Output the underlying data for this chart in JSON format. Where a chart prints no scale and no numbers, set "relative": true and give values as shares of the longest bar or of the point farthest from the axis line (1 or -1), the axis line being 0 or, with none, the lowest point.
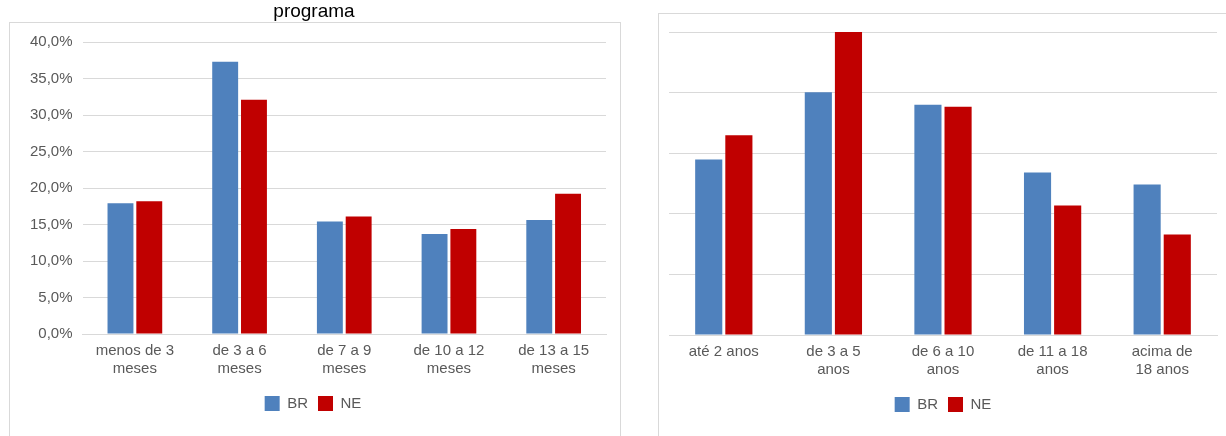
{
  "chart_data": [
    {
      "type": "bar",
      "title": "programa",
      "categories": [
        "menos de 3 meses",
        "de 3 a 6 meses",
        "de 7 a 9 meses",
        "de 10 a 12 meses",
        "de 13 a 15 meses"
      ],
      "series": [
        {
          "name": "BR",
          "color": "#4f81bd",
          "values": [
            17.9,
            37.3,
            15.4,
            13.7,
            15.6
          ]
        },
        {
          "name": "NE",
          "color": "#c00000",
          "values": [
            18.2,
            32.1,
            16.1,
            14.4,
            19.2
          ]
        }
      ],
      "ylim": [
        0,
        40
      ],
      "yticks": [
        {
          "value": 0,
          "label": "0,0%"
        },
        {
          "value": 5,
          "label": "5,0%"
        },
        {
          "value": 10,
          "label": "10,0%"
        },
        {
          "value": 15,
          "label": "15,0%"
        },
        {
          "value": 20,
          "label": "20,0%"
        },
        {
          "value": 25,
          "label": "25,0%"
        },
        {
          "value": 30,
          "label": "30,0%"
        },
        {
          "value": 35,
          "label": "35,0%"
        },
        {
          "value": 40,
          "label": "40,0%"
        }
      ],
      "grid": "y",
      "legend": "bottom"
    },
    {
      "type": "bar",
      "relative": true,
      "categories": [
        "até 2 anos",
        "de 3 a 5 anos",
        "de 6 a 10 anos",
        "de 11 a 18 anos",
        "acima de 18 anos"
      ],
      "series": [
        {
          "name": "BR",
          "color": "#4f81bd",
          "values": [
            0.579,
            0.801,
            0.76,
            0.536,
            0.497
          ]
        },
        {
          "name": "NE",
          "color": "#c00000",
          "values": [
            0.659,
            1,
            0.753,
            0.427,
            0.332
          ]
        }
      ],
      "grid": "y",
      "legend": "bottom"
    }
  ]
}
